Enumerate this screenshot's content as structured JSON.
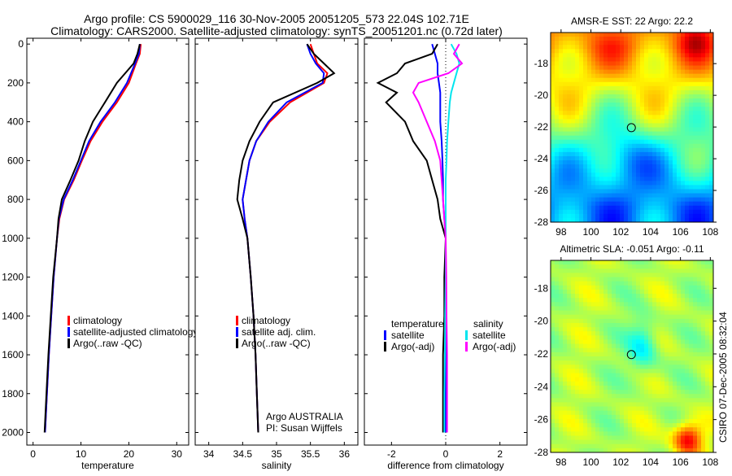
{
  "title_line1": "Argo profile: CS 5900029_116 30-Nov-2005 20051205_573 22.04S 102.71E",
  "title_line2": "Climatology: CARS2000. Satellite-adjusted climatology: synTS_20051201.nc (0.72d later)",
  "side_label": "CSIRO 07-Dec-2005 08:32:04",
  "colors": {
    "climatology": "#ff0000",
    "satellite": "#0000ff",
    "argo": "#000000",
    "sal_satellite": "#00e5ee",
    "sal_argo": "#ff00ff"
  },
  "chart_data": [
    {
      "type": "line",
      "xlabel": "temperature",
      "xlim": [
        -1.3,
        32.5
      ],
      "ylim": [
        2065,
        -30
      ],
      "xticks": [
        "0",
        "10",
        "20",
        "30"
      ],
      "xtick_values": [
        0,
        10,
        20,
        30
      ],
      "yticks": [
        "0",
        "200",
        "400",
        "600",
        "800",
        "1000",
        "1200",
        "1400",
        "1600",
        "1800",
        "2000"
      ],
      "legend": [
        "climatology",
        "satellite-adjusted climatology",
        "Argo(..raw -QC)"
      ],
      "depth": [
        0,
        50,
        100,
        200,
        300,
        400,
        500,
        600,
        700,
        800,
        900,
        1000,
        1200,
        1400,
        1600,
        1800,
        2000
      ],
      "series": [
        {
          "name": "climatology",
          "color": "#ff0000",
          "values": [
            22.5,
            22.3,
            21.5,
            20,
            17.5,
            14.5,
            12,
            10.2,
            8.5,
            6.5,
            5.5,
            5,
            4.3,
            3.8,
            3.3,
            2.9,
            2.5
          ]
        },
        {
          "name": "satellite-adjusted climatology",
          "color": "#0000ff",
          "values": [
            22.3,
            22.1,
            21.3,
            19.6,
            17.1,
            14.1,
            11.7,
            10,
            8.3,
            6.4,
            5.4,
            5,
            4.3,
            3.8,
            3.3,
            2.9,
            2.5
          ]
        },
        {
          "name": "Argo(..raw -QC)",
          "color": "#000000",
          "values": [
            22.3,
            21.8,
            21,
            17.5,
            15,
            12.5,
            10.8,
            9.5,
            7.8,
            6,
            5.3,
            5,
            4.2,
            3.7,
            3.2,
            2.8,
            2.4
          ]
        }
      ]
    },
    {
      "type": "line",
      "xlabel": "salinity",
      "xlim": [
        33.8,
        36.2
      ],
      "ylim": [
        2065,
        -30
      ],
      "xticks": [
        "34",
        "34.5",
        "35",
        "35.5",
        "36"
      ],
      "xtick_values": [
        34,
        34.5,
        35,
        35.5,
        36
      ],
      "legend": [
        "climatology",
        "satellite adj. clim.",
        "Argo(..raw -QC)"
      ],
      "annotation": [
        "Argo AUSTRALIA",
        "PI: Susan Wijffels"
      ],
      "depth": [
        0,
        50,
        100,
        150,
        200,
        300,
        400,
        500,
        600,
        700,
        800,
        900,
        1000,
        1200,
        1400,
        1600,
        1800,
        2000
      ],
      "series": [
        {
          "name": "climatology",
          "color": "#ff0000",
          "values": [
            35.5,
            35.55,
            35.6,
            35.75,
            35.7,
            35.2,
            34.9,
            34.7,
            34.6,
            34.55,
            34.5,
            34.53,
            34.57,
            34.62,
            34.66,
            34.69,
            34.71,
            34.73
          ]
        },
        {
          "name": "satellite adj. clim.",
          "color": "#0000ff",
          "values": [
            35.45,
            35.5,
            35.58,
            35.7,
            35.68,
            35.15,
            34.88,
            34.7,
            34.6,
            34.55,
            34.5,
            34.53,
            34.57,
            34.62,
            34.66,
            34.69,
            34.71,
            34.73
          ]
        },
        {
          "name": "Argo(..raw -QC)",
          "color": "#000000",
          "values": [
            35.45,
            35.55,
            35.7,
            35.85,
            35.6,
            34.95,
            34.75,
            34.6,
            34.5,
            34.45,
            34.42,
            34.5,
            34.57,
            34.62,
            34.66,
            34.69,
            34.71,
            34.73
          ]
        }
      ]
    },
    {
      "type": "line",
      "xlabel": "difference from climatology",
      "xlim": [
        -3,
        3
      ],
      "ylim": [
        2065,
        -30
      ],
      "xticks": [
        "-2",
        "0",
        "2"
      ],
      "xtick_values": [
        -2,
        0,
        2
      ],
      "legend_titles": [
        "temperature",
        "salinity"
      ],
      "legend": [
        "satellite",
        "Argo(-adj)",
        "satellite",
        "Argo(-adj)"
      ],
      "depth": [
        0,
        50,
        100,
        150,
        200,
        250,
        300,
        400,
        500,
        600,
        700,
        800,
        900,
        1000,
        1200,
        1400,
        1600,
        1800,
        2000
      ],
      "series": [
        {
          "name": "temperature satellite",
          "color": "#0000ff",
          "values": [
            -0.5,
            -0.4,
            -0.3,
            -0.3,
            -0.25,
            -0.2,
            -0.2,
            -0.2,
            -0.15,
            -0.12,
            -0.1,
            -0.1,
            -0.05,
            0,
            0,
            0,
            0,
            0,
            0
          ]
        },
        {
          "name": "temperature Argo(-adj)",
          "color": "#000000",
          "values": [
            -0.3,
            -0.5,
            -1.5,
            -1.8,
            -2.5,
            -1.8,
            -2.2,
            -1.5,
            -1.2,
            -0.7,
            -0.5,
            -0.3,
            -0.2,
            0,
            -0.05,
            -0.05,
            -0.1,
            -0.1,
            -0.1
          ]
        },
        {
          "name": "salinity satellite",
          "color": "#00e5ee",
          "values": [
            0.2,
            0.4,
            0.5,
            0.4,
            0.3,
            0.2,
            0.15,
            0.1,
            0.05,
            0.03,
            0,
            0,
            0,
            0,
            0,
            -0.02,
            -0.03,
            -0.05,
            -0.05
          ]
        },
        {
          "name": "salinity Argo(-adj)",
          "color": "#ff00ff",
          "values": [
            0.5,
            0.3,
            0.6,
            0.1,
            -1,
            -1.2,
            -1,
            -0.7,
            -0.4,
            -0.2,
            -0.15,
            -0.1,
            -0.05,
            0,
            0.02,
            0.03,
            0.05,
            0.05,
            0.05
          ]
        }
      ]
    },
    {
      "type": "heatmap",
      "title": "AMSR-E SST: 22 Argo: 22.2",
      "xlim": [
        97.3,
        108.2
      ],
      "ylim": [
        -16.04,
        -28
      ],
      "xticks": [
        "98",
        "100",
        "102",
        "104",
        "106",
        "108"
      ],
      "xtick_values": [
        98,
        100,
        102,
        104,
        106,
        108
      ],
      "yticks": [
        "-18",
        "-20",
        "-22",
        "-24",
        "-26",
        "-28"
      ],
      "ytick_values": [
        -18,
        -20,
        -22,
        -24,
        -26,
        -28
      ],
      "marker": {
        "lon": 102.71,
        "lat": -22.04
      }
    },
    {
      "type": "heatmap",
      "title": "Altimetric SLA: -0.051 Argo: -0.11",
      "xlim": [
        97.3,
        108.2
      ],
      "ylim": [
        -16.3,
        -28
      ],
      "xticks": [
        "98",
        "100",
        "102",
        "104",
        "106",
        "108"
      ],
      "xtick_values": [
        98,
        100,
        102,
        104,
        106,
        108
      ],
      "yticks": [
        "-18",
        "-20",
        "-22",
        "-24",
        "-26",
        "-28"
      ],
      "ytick_values": [
        -18,
        -20,
        -22,
        -24,
        -26,
        -28
      ],
      "marker": {
        "lon": 102.71,
        "lat": -22.04
      }
    }
  ]
}
